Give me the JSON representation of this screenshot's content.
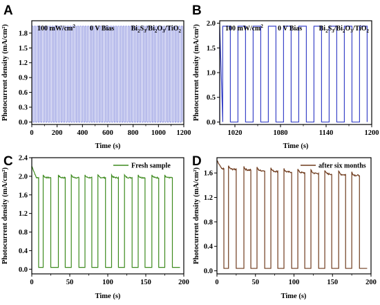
{
  "chart_data": [
    {
      "panel": "A",
      "type": "line",
      "xlabel": "Time (s)",
      "ylabel": "Photocurrent density (mA/cm²)",
      "xlim": [
        0,
        1200
      ],
      "ylim": [
        -0.05,
        2.05
      ],
      "xticks": [
        0,
        200,
        400,
        600,
        800,
        1000,
        1200
      ],
      "yticks": [
        0.0,
        0.3,
        0.6,
        0.9,
        1.2,
        1.5,
        1.8
      ],
      "annotation": {
        "light": "100 mW/cm",
        "light_sup": "2",
        "bias": "0 V Bias",
        "sample_parts": [
          "Bi",
          "2",
          "S",
          "3",
          "/Bi",
          "2",
          "O",
          "3",
          "/TiO",
          "2"
        ]
      },
      "series": [
        {
          "color": "#3a44c8",
          "period": 20,
          "on_fraction": 0.5,
          "high": 1.94,
          "low": 0.0
        }
      ]
    },
    {
      "panel": "B",
      "type": "line",
      "xlabel": "Time (s)",
      "ylabel": "Photocurrent density (mA/cm²)",
      "xlim": [
        1000,
        1200
      ],
      "ylim": [
        -0.05,
        2.05
      ],
      "xticks": [
        1020,
        1080,
        1140,
        1200
      ],
      "yticks": [
        0.0,
        0.5,
        1.0,
        1.5,
        2.0
      ],
      "annotation": {
        "light": "100 mW/cm",
        "light_sup": "2",
        "bias": "0 V Bias",
        "sample_parts": [
          "Bi",
          "2",
          "S",
          "3",
          "/Bi",
          "2",
          "O",
          "3",
          "/TiO",
          "2"
        ]
      },
      "series": [
        {
          "color": "#3a44c8",
          "period": 20,
          "on_start_offset": 4,
          "on_duration": 10,
          "high": 1.94,
          "low": 0.0
        }
      ]
    },
    {
      "panel": "C",
      "type": "line",
      "xlabel": "Time (s)",
      "ylabel": "Photocurrent density (mA/cm²)",
      "xlim": [
        0,
        200
      ],
      "ylim": [
        -0.1,
        2.4
      ],
      "xticks": [
        0,
        50,
        100,
        150,
        200
      ],
      "yticks": [
        0.0,
        0.4,
        0.8,
        1.2,
        1.6,
        2.0,
        2.4
      ],
      "legend": "Fresh sample",
      "series": [
        {
          "name": "Fresh sample",
          "color": "#3d8a1e",
          "pulses": [
            [
              0,
              9
            ],
            [
              15,
              25
            ],
            [
              35,
              44
            ],
            [
              52,
              62
            ],
            [
              70,
              79
            ],
            [
              87,
              97
            ],
            [
              105,
              114
            ],
            [
              122,
              132
            ],
            [
              140,
              149
            ],
            [
              158,
              167
            ],
            [
              175,
              185
            ]
          ],
          "high": 1.97,
          "low": 0.04,
          "initial_spike": 2.22
        }
      ]
    },
    {
      "panel": "D",
      "type": "line",
      "xlabel": "Time (s)",
      "ylabel": "Photocurrent density (mA/cm²)",
      "xlim": [
        0,
        200
      ],
      "ylim": [
        -0.05,
        1.85
      ],
      "xticks": [
        0,
        50,
        100,
        150,
        200
      ],
      "yticks": [
        0.0,
        0.4,
        0.8,
        1.2,
        1.6
      ],
      "legend": "after six months",
      "series": [
        {
          "name": "after six months",
          "color": "#6e3a1c",
          "pulses": [
            [
              0,
              9
            ],
            [
              15,
              25
            ],
            [
              35,
              44
            ],
            [
              52,
              62
            ],
            [
              70,
              79
            ],
            [
              87,
              97
            ],
            [
              105,
              114
            ],
            [
              122,
              132
            ],
            [
              140,
              149
            ],
            [
              158,
              167
            ],
            [
              175,
              185
            ]
          ],
          "high_start": 1.67,
          "high_end": 1.56,
          "low": 0.04,
          "initial_spike": 1.8
        }
      ]
    }
  ]
}
